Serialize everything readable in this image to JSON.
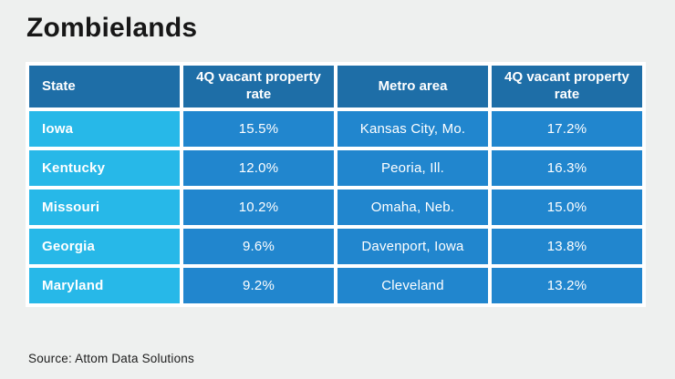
{
  "title": "Zombielands",
  "source": "Source: Attom Data Solutions",
  "colors": {
    "background": "#eef0ef",
    "header_blue": "#1e6ea7",
    "state_cyan": "#27b8e8",
    "value_blue": "#2186ce",
    "grid_white": "#ffffff",
    "text_white": "#ffffff",
    "title_text": "#171717"
  },
  "chart_data": {
    "type": "table",
    "title": "Zombielands",
    "columns": [
      "State",
      "4Q vacant property rate",
      "Metro area",
      "4Q vacant property rate"
    ],
    "rows": [
      [
        "Iowa",
        "15.5%",
        "Kansas City, Mo.",
        "17.2%"
      ],
      [
        "Kentucky",
        "12.0%",
        "Peoria, Ill.",
        "16.3%"
      ],
      [
        "Missouri",
        "10.2%",
        "Omaha, Neb.",
        "15.0%"
      ],
      [
        "Georgia",
        "9.6%",
        "Davenport, Iowa",
        "13.8%"
      ],
      [
        "Maryland",
        "9.2%",
        "Cleveland",
        "13.2%"
      ]
    ],
    "state_rates": {
      "categories": [
        "Iowa",
        "Kentucky",
        "Missouri",
        "Georgia",
        "Maryland"
      ],
      "values": [
        15.5,
        12.0,
        10.2,
        9.6,
        9.2
      ],
      "unit": "%"
    },
    "metro_rates": {
      "categories": [
        "Kansas City, Mo.",
        "Peoria, Ill.",
        "Omaha, Neb.",
        "Davenport, Iowa",
        "Cleveland"
      ],
      "values": [
        17.2,
        16.3,
        15.0,
        13.8,
        13.2
      ],
      "unit": "%"
    }
  }
}
